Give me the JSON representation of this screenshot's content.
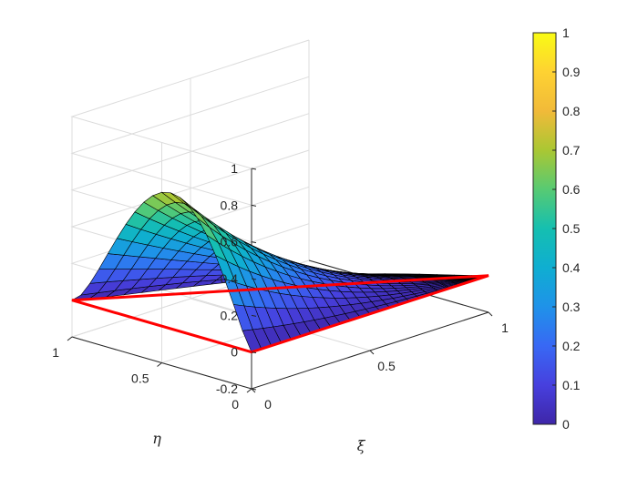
{
  "chart_data": {
    "type": "surface",
    "xlabel": "ξ",
    "ylabel": "η",
    "zlabel": "",
    "xlim": [
      0,
      1
    ],
    "ylim": [
      0,
      1
    ],
    "zlim": [
      -0.2,
      1
    ],
    "xticks": [
      "0",
      "0.5",
      "1"
    ],
    "yticks": [
      "0",
      "0.5",
      "1"
    ],
    "zticks": [
      "-0.2",
      "0",
      "0.2",
      "0.4",
      "0.6",
      "0.8",
      "1"
    ],
    "grid": true,
    "colormap": "parula",
    "colorbar": {
      "location": "right",
      "ticks": [
        "0",
        "0.1",
        "0.2",
        "0.3",
        "0.4",
        "0.5",
        "0.6",
        "0.7",
        "0.8",
        "0.9",
        "1"
      ],
      "range": [
        0,
        1
      ]
    },
    "domain": "triangle with vertices (ξ,η) = (0,0), (1,0), (0,1)",
    "surface_peak": {
      "xi": 0.13,
      "eta": 0.5,
      "value": 0.74
    },
    "boundary_color": "#ff0000"
  }
}
